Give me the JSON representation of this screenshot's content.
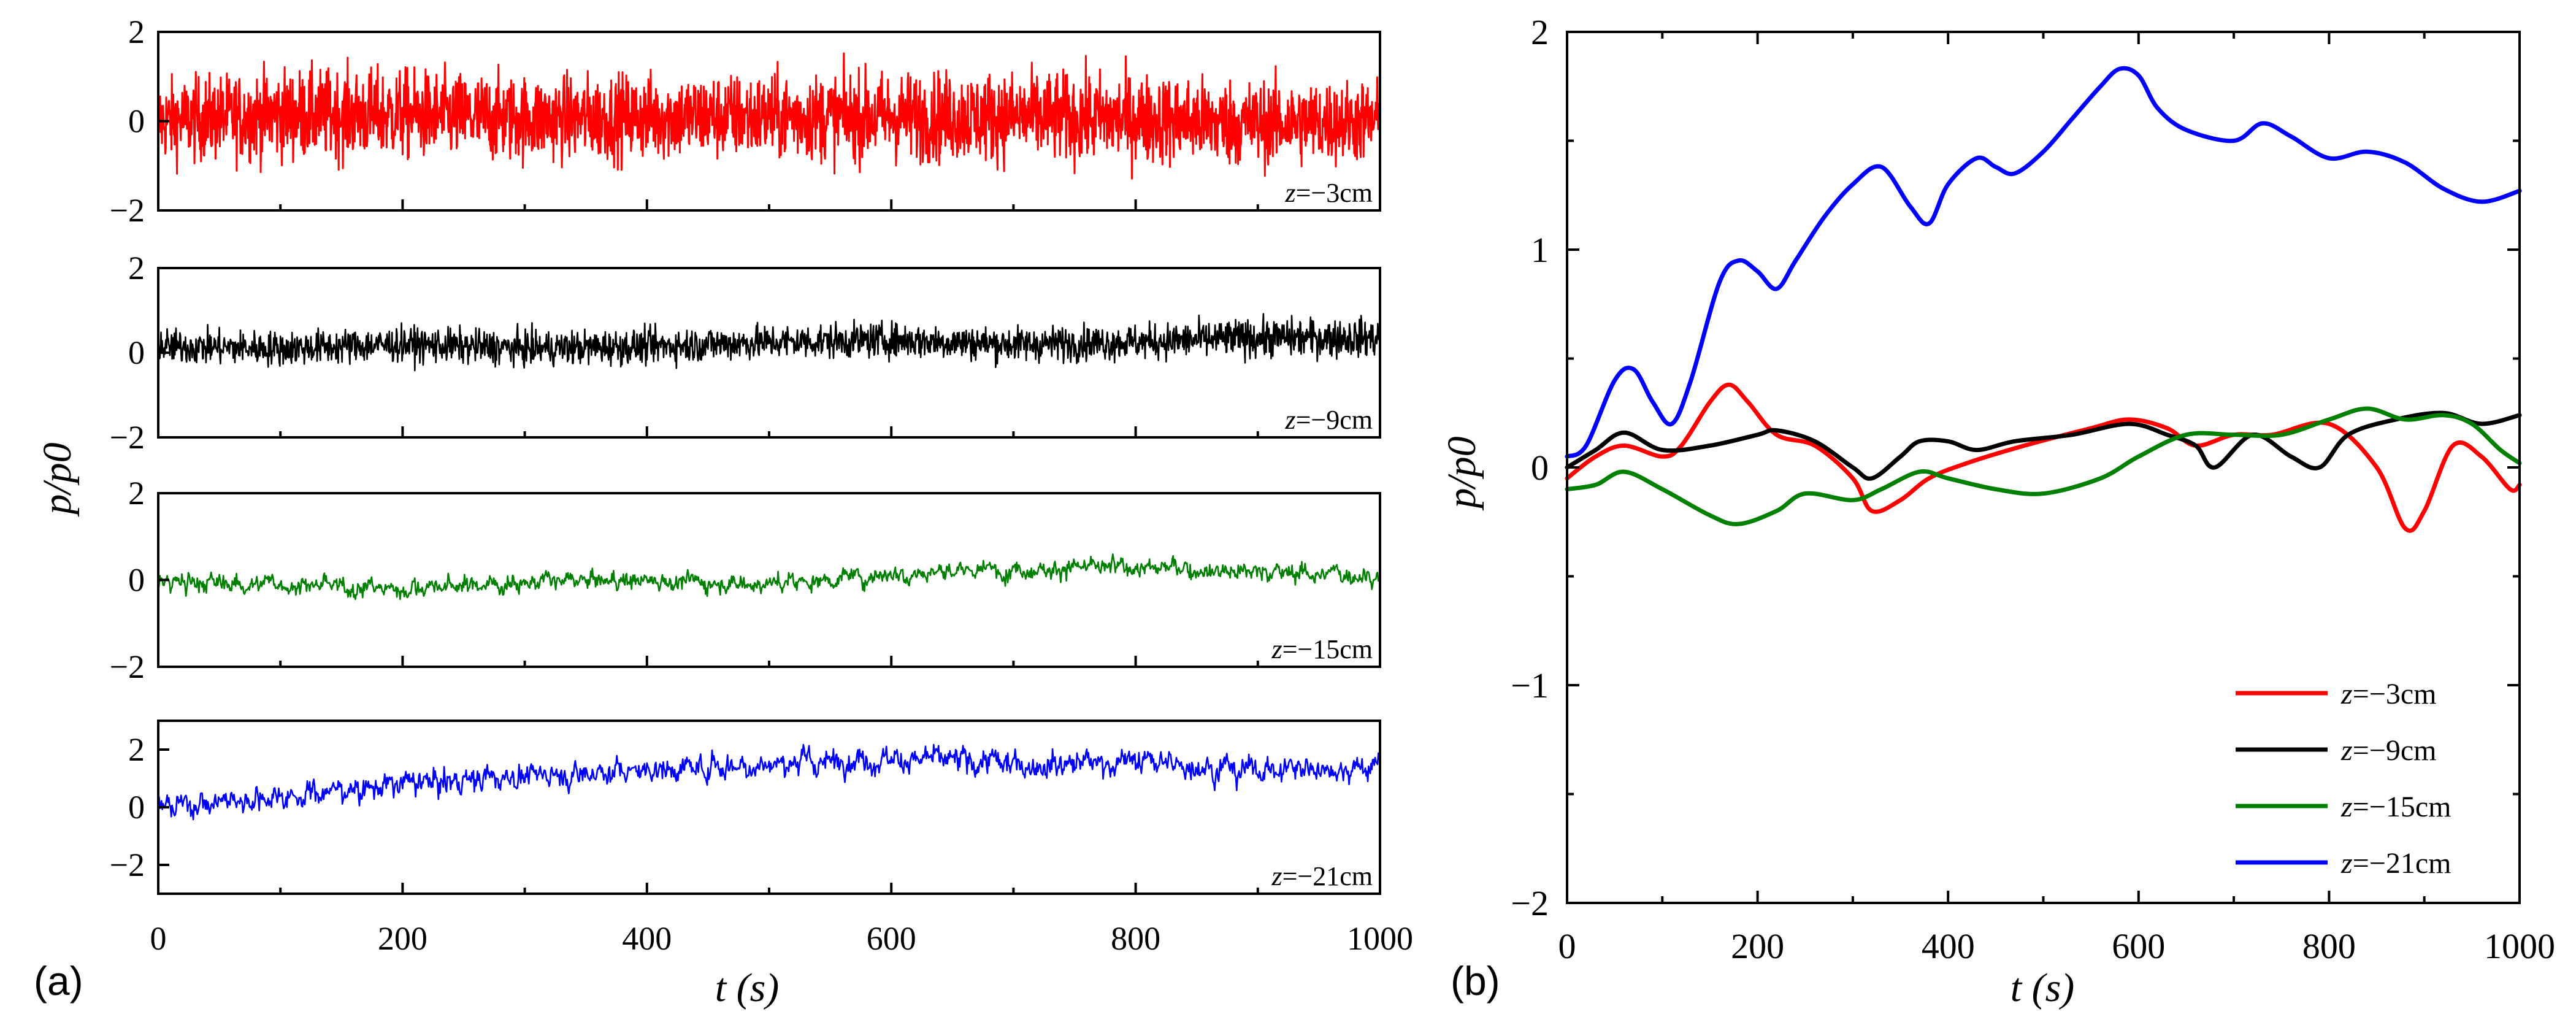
{
  "figure": {
    "panel_a": {
      "label": "(a)",
      "xlabel": "t (s)",
      "ylabel": "p/p0",
      "x_ticks": [
        "0",
        "200",
        "400",
        "600",
        "800",
        "1000"
      ],
      "legend_labels": [
        "z=−3cm",
        "z=−9cm",
        "z=−15cm",
        "z=−21cm"
      ]
    },
    "panel_b": {
      "label": "(b)",
      "xlabel": "t (s)",
      "ylabel": "p/p0",
      "x_ticks": [
        "0",
        "200",
        "400",
        "600",
        "800",
        "1000"
      ],
      "y_ticks": [
        "−2",
        "−1",
        "0",
        "1",
        "2"
      ],
      "legend_labels": [
        "z=−3cm",
        "z=−9cm",
        "z=−15cm",
        "z=−21cm"
      ]
    }
  },
  "chart_data": [
    {
      "type": "line",
      "title": "",
      "panel": "(a)",
      "xlabel": "t (s)",
      "ylabel": "p/p0",
      "xlim": [
        0,
        1000
      ],
      "subplots": [
        {
          "name": "z=−3cm",
          "color": "#ff0000",
          "ylim": [
            -2,
            2
          ],
          "yticks": [
            -2,
            0,
            2
          ],
          "annotation": "z=−3cm",
          "x": [
            0,
            100,
            200,
            300,
            400,
            500,
            600,
            700,
            800,
            900,
            1000
          ],
          "mean": [
            0.0,
            0.15,
            0.15,
            0.05,
            0.1,
            0.1,
            0.1,
            0.1,
            0.05,
            -0.05,
            0.0
          ],
          "amplitude": [
            1.0,
            1.1,
            1.1,
            1.05,
            1.05,
            1.05,
            1.1,
            1.1,
            1.1,
            1.05,
            1.0
          ]
        },
        {
          "name": "z=−9cm",
          "color": "#000000",
          "ylim": [
            -2,
            2
          ],
          "yticks": [
            -2,
            0,
            2
          ],
          "annotation": "z=−9cm",
          "x": [
            0,
            100,
            200,
            300,
            400,
            500,
            600,
            700,
            800,
            900,
            1000
          ],
          "mean": [
            0.15,
            0.1,
            0.2,
            0.1,
            0.15,
            0.25,
            0.3,
            0.2,
            0.25,
            0.35,
            0.35
          ],
          "amplitude": [
            0.45,
            0.45,
            0.45,
            0.45,
            0.45,
            0.45,
            0.45,
            0.45,
            0.45,
            0.5,
            0.5
          ]
        },
        {
          "name": "z=−15cm",
          "color": "#008000",
          "ylim": [
            -2,
            2
          ],
          "yticks": [
            -2,
            0,
            2
          ],
          "annotation": "z=−15cm",
          "x": [
            0,
            100,
            200,
            300,
            400,
            500,
            600,
            700,
            800,
            900,
            1000
          ],
          "mean": [
            -0.05,
            -0.1,
            -0.2,
            -0.05,
            0.0,
            -0.1,
            0.15,
            0.25,
            0.3,
            0.2,
            0.1
          ],
          "amplitude": [
            0.2,
            0.2,
            0.2,
            0.2,
            0.2,
            0.2,
            0.2,
            0.2,
            0.2,
            0.2,
            0.2
          ]
        },
        {
          "name": "z=−21cm",
          "color": "#0000ff",
          "ylim": [
            -3,
            3
          ],
          "yticks": [
            -2,
            0,
            2
          ],
          "annotation": "z=−21cm",
          "x": [
            0,
            100,
            200,
            300,
            400,
            500,
            600,
            700,
            800,
            900,
            1000
          ],
          "mean": [
            0.0,
            0.4,
            0.8,
            1.1,
            1.3,
            1.5,
            1.7,
            1.5,
            1.6,
            1.3,
            1.4
          ],
          "amplitude": [
            0.4,
            0.4,
            0.4,
            0.4,
            0.4,
            0.4,
            0.4,
            0.4,
            0.4,
            0.4,
            0.4
          ]
        }
      ]
    },
    {
      "type": "line",
      "title": "",
      "panel": "(b)",
      "xlabel": "t (s)",
      "ylabel": "p/p0",
      "xlim": [
        0,
        1000
      ],
      "ylim": [
        -2,
        2
      ],
      "legend_position": "bottom-right",
      "series": [
        {
          "name": "z=−3cm",
          "color": "#ff0000",
          "x": [
            0,
            30,
            60,
            100,
            120,
            150,
            170,
            190,
            220,
            260,
            300,
            320,
            350,
            380,
            420,
            480,
            550,
            590,
            630,
            660,
            700,
            740,
            800,
            850,
            880,
            900,
            930,
            960,
            990,
            1000
          ],
          "y": [
            -0.05,
            0.05,
            0.1,
            0.05,
            0.1,
            0.3,
            0.38,
            0.3,
            0.15,
            0.1,
            -0.05,
            -0.2,
            -0.15,
            -0.05,
            0.02,
            0.1,
            0.18,
            0.22,
            0.18,
            0.1,
            0.15,
            0.15,
            0.2,
            0.0,
            -0.28,
            -0.2,
            0.1,
            0.05,
            -0.1,
            -0.08
          ]
        },
        {
          "name": "z=−9cm",
          "color": "#000000",
          "x": [
            0,
            30,
            60,
            100,
            150,
            200,
            220,
            260,
            300,
            320,
            350,
            370,
            400,
            430,
            470,
            530,
            590,
            630,
            660,
            680,
            720,
            760,
            790,
            820,
            870,
            920,
            960,
            1000
          ],
          "y": [
            0.0,
            0.08,
            0.16,
            0.08,
            0.1,
            0.15,
            0.17,
            0.12,
            0.0,
            -0.05,
            0.05,
            0.12,
            0.12,
            0.08,
            0.12,
            0.15,
            0.2,
            0.15,
            0.1,
            0.0,
            0.15,
            0.05,
            0.0,
            0.15,
            0.22,
            0.25,
            0.2,
            0.24
          ]
        },
        {
          "name": "z=−15cm",
          "color": "#008000",
          "x": [
            0,
            30,
            60,
            100,
            150,
            180,
            220,
            250,
            300,
            330,
            370,
            400,
            450,
            500,
            560,
            600,
            650,
            700,
            750,
            800,
            840,
            880,
            920,
            950,
            980,
            1000
          ],
          "y": [
            -0.1,
            -0.08,
            -0.02,
            -0.1,
            -0.22,
            -0.26,
            -0.2,
            -0.12,
            -0.15,
            -0.1,
            -0.02,
            -0.05,
            -0.1,
            -0.12,
            -0.05,
            0.05,
            0.15,
            0.15,
            0.15,
            0.22,
            0.27,
            0.22,
            0.24,
            0.2,
            0.08,
            0.02
          ]
        },
        {
          "name": "z=−21cm",
          "color": "#0000ff",
          "x": [
            0,
            20,
            50,
            70,
            90,
            110,
            130,
            160,
            180,
            200,
            220,
            240,
            270,
            300,
            330,
            360,
            380,
            400,
            430,
            450,
            470,
            500,
            530,
            560,
            580,
            600,
            620,
            650,
            700,
            730,
            760,
            800,
            840,
            880,
            920,
            960,
            1000
          ],
          "y": [
            0.05,
            0.1,
            0.4,
            0.45,
            0.3,
            0.2,
            0.4,
            0.85,
            0.95,
            0.9,
            0.82,
            0.95,
            1.15,
            1.3,
            1.38,
            1.2,
            1.12,
            1.3,
            1.42,
            1.38,
            1.35,
            1.45,
            1.6,
            1.75,
            1.83,
            1.8,
            1.65,
            1.55,
            1.5,
            1.58,
            1.52,
            1.42,
            1.45,
            1.4,
            1.28,
            1.22,
            1.27
          ]
        }
      ]
    }
  ]
}
